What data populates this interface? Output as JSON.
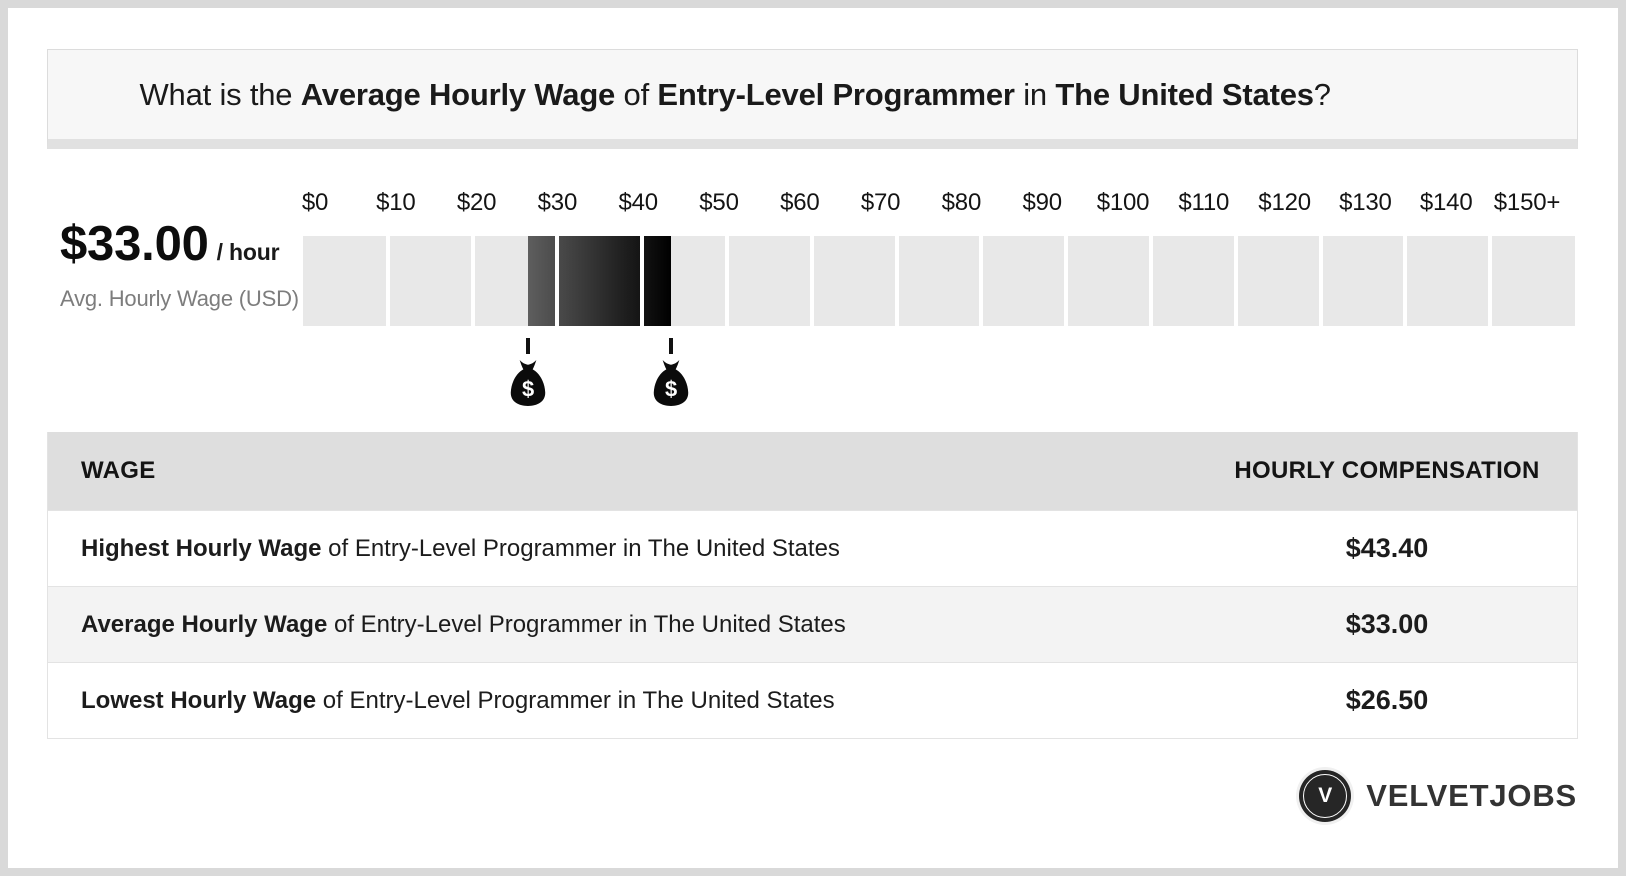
{
  "question": {
    "prefix": "What is the ",
    "bold1": "Average Hourly Wage",
    "mid1": " of ",
    "bold2": "Entry-Level Programmer",
    "mid2": " in ",
    "bold3": "The United States",
    "suffix": "?"
  },
  "wage_summary": {
    "amount": "$33.00",
    "per": "/ hour",
    "caption": "Avg. Hourly Wage (USD)"
  },
  "chart_data": {
    "type": "range-scale",
    "title": "Average Hourly Wage of Entry-Level Programmer in The United States",
    "unit": "USD per hour",
    "axis_min": 0,
    "axis_max": 150,
    "segment_size": 10,
    "tick_labels": [
      "$0",
      "$10",
      "$20",
      "$30",
      "$40",
      "$50",
      "$60",
      "$70",
      "$80",
      "$90",
      "$100",
      "$110",
      "$120",
      "$130",
      "$140",
      "$150+"
    ],
    "range": {
      "low": 26.5,
      "average": 33.0,
      "high": 43.4
    },
    "markers": [
      {
        "value": 26.5,
        "icon": "money-bag"
      },
      {
        "value": 43.4,
        "icon": "money-bag"
      }
    ],
    "colors": {
      "track": "#e8e8e8",
      "bar_start": "#5e5e5e",
      "bar_end": "#000000"
    },
    "legend_position": "none",
    "grid": false
  },
  "table": {
    "headers": {
      "wage": "WAGE",
      "compensation": "HOURLY COMPENSATION"
    },
    "rows": [
      {
        "bold": "Highest Hourly Wage",
        "rest": " of Entry-Level Programmer in The United States",
        "value": "$43.40"
      },
      {
        "bold": "Average Hourly Wage",
        "rest": " of Entry-Level Programmer in The United States",
        "value": "$33.00"
      },
      {
        "bold": "Lowest Hourly Wage",
        "rest": " of Entry-Level Programmer in The United States",
        "value": "$26.50"
      }
    ]
  },
  "brand": {
    "initial": "V",
    "name": "VELVETJOBS"
  }
}
